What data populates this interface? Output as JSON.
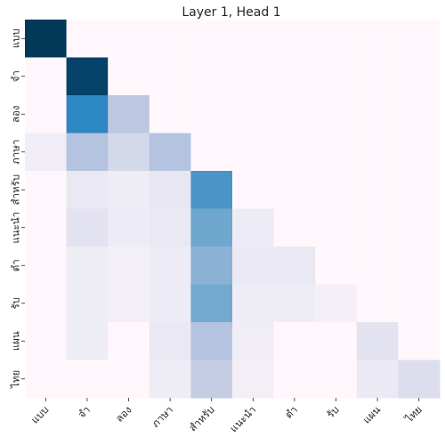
{
  "chart_data": {
    "type": "heatmap",
    "title": "Layer 1, Head 1",
    "x_labels": [
      "แบบ",
      "จำ",
      "ลอง",
      "ภาษา",
      "สำหรับ",
      "แนะนำ",
      "ตำ",
      "รับ",
      "แผน",
      "ไทย"
    ],
    "y_labels": [
      "แบบ",
      "จำ",
      "ลอง",
      "ภาษา",
      "สำหรับ",
      "แนะนำ",
      "ตำ",
      "รับ",
      "แผน",
      "ไทย"
    ],
    "values": [
      [
        1.0,
        0.0,
        0.0,
        0.0,
        0.0,
        0.0,
        0.0,
        0.0,
        0.0,
        0.0
      ],
      [
        0.0,
        0.95,
        0.0,
        0.0,
        0.0,
        0.0,
        0.0,
        0.0,
        0.0,
        0.0
      ],
      [
        0.0,
        0.62,
        0.28,
        0.0,
        0.0,
        0.0,
        0.0,
        0.0,
        0.0,
        0.0
      ],
      [
        0.06,
        0.3,
        0.2,
        0.3,
        0.0,
        0.0,
        0.0,
        0.0,
        0.0,
        0.0
      ],
      [
        0.0,
        0.1,
        0.07,
        0.12,
        0.55,
        0.0,
        0.0,
        0.0,
        0.0,
        0.0
      ],
      [
        0.0,
        0.15,
        0.08,
        0.1,
        0.46,
        0.08,
        0.0,
        0.0,
        0.0,
        0.0
      ],
      [
        0.0,
        0.07,
        0.05,
        0.08,
        0.4,
        0.1,
        0.1,
        0.0,
        0.0,
        0.0
      ],
      [
        0.0,
        0.07,
        0.05,
        0.08,
        0.45,
        0.07,
        0.07,
        0.04,
        0.0,
        0.0
      ],
      [
        0.0,
        0.07,
        0.0,
        0.1,
        0.3,
        0.06,
        0.0,
        0.0,
        0.15,
        0.0
      ],
      [
        0.0,
        0.0,
        0.0,
        0.07,
        0.25,
        0.05,
        0.0,
        0.0,
        0.09,
        0.17
      ]
    ],
    "colormap": "PuBu",
    "grid": false,
    "colorbar": false
  }
}
